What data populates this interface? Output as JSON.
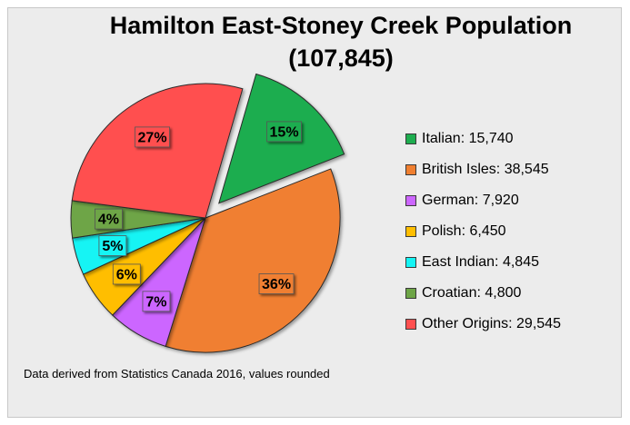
{
  "chart_data": {
    "type": "pie",
    "title": "Hamilton East-Stoney Creek Population",
    "subtitle": "(107,845)",
    "note": "Data derived from Statistics Canada 2016, values rounded",
    "legend_position": "right",
    "slices": [
      {
        "name": "Italian",
        "value": 15740,
        "legend": "Italian: 15,740",
        "label": "15%",
        "color": "#1ead4f",
        "exploded": true
      },
      {
        "name": "British Isles",
        "value": 38545,
        "legend": "British Isles: 38,545",
        "label": "36%",
        "color": "#f07f30",
        "exploded": false
      },
      {
        "name": "German",
        "value": 7920,
        "legend": "German: 7,920",
        "label": "7%",
        "color": "#cc66ff",
        "exploded": false
      },
      {
        "name": "Polish",
        "value": 6450,
        "legend": "Polish: 6,450",
        "label": "6%",
        "color": "#ffbe00",
        "exploded": false
      },
      {
        "name": "East Indian",
        "value": 4845,
        "legend": "East Indian: 4,845",
        "label": "5%",
        "color": "#14f4f4",
        "exploded": false
      },
      {
        "name": "Croatian",
        "value": 4800,
        "legend": "Croatian: 4,800",
        "label": "4%",
        "color": "#6ea547",
        "exploded": false
      },
      {
        "name": "Other Origins",
        "value": 29545,
        "legend": "Other Origins: 29,545",
        "label": "27%",
        "color": "#ff5050",
        "exploded": false
      }
    ]
  }
}
